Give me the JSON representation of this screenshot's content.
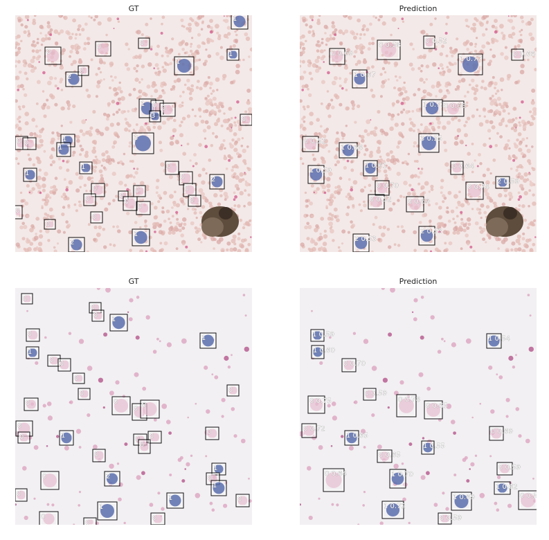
{
  "panels": [
    {
      "title": "GT",
      "variant": "smear",
      "boxes": [
        {
          "b": [
            334,
            20,
            358,
            42
          ],
          "label": "1"
        },
        {
          "b": [
            65,
            68,
            88,
            93
          ],
          "label": "0"
        },
        {
          "b": [
            138,
            60,
            160,
            81
          ],
          "label": "0"
        },
        {
          "b": [
            200,
            55,
            216,
            70
          ],
          "label": "0"
        },
        {
          "b": [
            252,
            82,
            280,
            108
          ],
          "label": "1"
        },
        {
          "b": [
            328,
            71,
            345,
            87
          ],
          "label": "1"
        },
        {
          "b": [
            95,
            104,
            118,
            125
          ],
          "label": "2"
        },
        {
          "b": [
            113,
            95,
            128,
            109
          ],
          "label": "0"
        },
        {
          "b": [
            201,
            143,
            225,
            170
          ],
          "label": "1"
        },
        {
          "b": [
            218,
            145,
            236,
            166
          ],
          "label": "0"
        },
        {
          "b": [
            231,
            149,
            253,
            168
          ],
          "label": "0"
        },
        {
          "b": [
            216,
            160,
            232,
            176
          ],
          "label": "3"
        },
        {
          "b": [
            347,
            165,
            364,
            181
          ],
          "label": "0"
        },
        {
          "b": [
            191,
            192,
            222,
            222
          ],
          "label": "3"
        },
        {
          "b": [
            22,
            197,
            40,
            216
          ],
          "label": "0"
        },
        {
          "b": [
            33,
            199,
            52,
            216
          ],
          "label": "0"
        },
        {
          "b": [
            88,
            194,
            108,
            212
          ],
          "label": "1"
        },
        {
          "b": [
            82,
            206,
            102,
            226
          ],
          "label": "1"
        },
        {
          "b": [
            115,
            234,
            133,
            251
          ],
          "label": "1"
        },
        {
          "b": [
            34,
            243,
            53,
            262
          ],
          "label": "1"
        },
        {
          "b": [
            239,
            233,
            258,
            252
          ],
          "label": "0"
        },
        {
          "b": [
            259,
            248,
            278,
            267
          ],
          "label": "0"
        },
        {
          "b": [
            303,
            252,
            324,
            273
          ],
          "label": "2"
        },
        {
          "b": [
            265,
            265,
            283,
            284
          ],
          "label": "0"
        },
        {
          "b": [
            272,
            282,
            290,
            298
          ],
          "label": "0"
        },
        {
          "b": [
            132,
            265,
            151,
            284
          ],
          "label": "0"
        },
        {
          "b": [
            121,
            280,
            138,
            297
          ],
          "label": "0"
        },
        {
          "b": [
            171,
            276,
            185,
            290
          ],
          "label": "0"
        },
        {
          "b": [
            193,
            268,
            210,
            284
          ],
          "label": "0"
        },
        {
          "b": [
            178,
            284,
            198,
            304
          ],
          "label": "0"
        },
        {
          "b": [
            197,
            291,
            217,
            310
          ],
          "label": "0"
        },
        {
          "b": [
            20,
            297,
            32,
            316
          ],
          "label": "0"
        },
        {
          "b": [
            64,
            317,
            80,
            331
          ],
          "label": "0"
        },
        {
          "b": [
            131,
            306,
            148,
            322
          ],
          "label": "0"
        },
        {
          "b": [
            191,
            331,
            216,
            355
          ],
          "label": "1"
        },
        {
          "b": [
            99,
            343,
            122,
            364
          ],
          "label": "2"
        }
      ]
    },
    {
      "title": "Prediction",
      "variant": "smear",
      "boxes": [
        {
          "b": [
            545,
            58,
            578,
            86
          ],
          "label": "0 0.58"
        },
        {
          "b": [
            612,
            52,
            628,
            70
          ],
          "label": "0 0.52"
        },
        {
          "b": [
            476,
            70,
            498,
            93
          ],
          "label": "0 0.69"
        },
        {
          "b": [
            739,
            71,
            756,
            87
          ],
          "label": "0 0.66"
        },
        {
          "b": [
            662,
            78,
            697,
            108
          ],
          "label": "1 0.77"
        },
        {
          "b": [
            509,
            101,
            530,
            127
          ],
          "label": "1 0.67"
        },
        {
          "b": [
            609,
            144,
            639,
            168
          ],
          "label": "1 0.73"
        },
        {
          "b": [
            639,
            146,
            670,
            168
          ],
          "label": "0 0.68"
        },
        {
          "b": [
            605,
            193,
            634,
            220
          ],
          "label": "3 0.55"
        },
        {
          "b": [
            437,
            197,
            460,
            219
          ],
          "label": "0 0.52"
        },
        {
          "b": [
            490,
            206,
            516,
            228
          ],
          "label": "1 0.68"
        },
        {
          "b": [
            525,
            232,
            545,
            254
          ],
          "label": "1 0.61"
        },
        {
          "b": [
            651,
            233,
            669,
            252
          ],
          "label": "0 0.64"
        },
        {
          "b": [
            445,
            239,
            468,
            265
          ],
          "label": "1 0.59"
        },
        {
          "b": [
            716,
            255,
            736,
            272
          ],
          "label": "2 0.59"
        },
        {
          "b": [
            673,
            263,
            698,
            288
          ],
          "label": "0 0.74"
        },
        {
          "b": [
            542,
            261,
            562,
            282
          ],
          "label": "0 0.70"
        },
        {
          "b": [
            532,
            281,
            555,
            302
          ],
          "label": "0 0.52"
        },
        {
          "b": [
            587,
            284,
            612,
            306
          ],
          "label": "0 0.69"
        },
        {
          "b": [
            605,
            327,
            628,
            354
          ],
          "label": "2 0.53"
        },
        {
          "b": [
            510,
            338,
            533,
            364
          ],
          "label": "2 0.53"
        }
      ]
    },
    {
      "title": "GT",
      "variant": "clear",
      "boxes": [
        {
          "b": [
            31,
            424,
            47,
            439
          ],
          "label": "0"
        },
        {
          "b": [
            129,
            437,
            146,
            452
          ],
          "label": "0"
        },
        {
          "b": [
            133,
            448,
            150,
            464
          ],
          "label": "0"
        },
        {
          "b": [
            159,
            454,
            184,
            478
          ],
          "label": "1"
        },
        {
          "b": [
            289,
            481,
            312,
            503
          ],
          "label": "1"
        },
        {
          "b": [
            38,
            475,
            57,
            493
          ],
          "label": "0"
        },
        {
          "b": [
            38,
            501,
            56,
            518
          ],
          "label": "1"
        },
        {
          "b": [
            69,
            513,
            87,
            529
          ],
          "label": "0"
        },
        {
          "b": [
            84,
            518,
            102,
            536
          ],
          "label": "0"
        },
        {
          "b": [
            105,
            539,
            122,
            554
          ],
          "label": "0"
        },
        {
          "b": [
            113,
            561,
            130,
            577
          ],
          "label": "0"
        },
        {
          "b": [
            328,
            556,
            345,
            572
          ],
          "label": "0"
        },
        {
          "b": [
            35,
            575,
            55,
            593
          ],
          "label": "0"
        },
        {
          "b": [
            162,
            573,
            188,
            599
          ],
          "label": "0"
        },
        {
          "b": [
            191,
            583,
            212,
            607
          ],
          "label": "0"
        },
        {
          "b": [
            203,
            578,
            230,
            604
          ],
          "label": "0"
        },
        {
          "b": [
            23,
            608,
            47,
            630
          ],
          "label": "0"
        },
        {
          "b": [
            26,
            624,
            43,
            640
          ],
          "label": "0"
        },
        {
          "b": [
            86,
            622,
            106,
            643
          ],
          "label": "1"
        },
        {
          "b": [
            214,
            623,
            233,
            640
          ],
          "label": "0"
        },
        {
          "b": [
            193,
            627,
            212,
            643
          ],
          "label": "0"
        },
        {
          "b": [
            200,
            635,
            217,
            655
          ],
          "label": "0"
        },
        {
          "b": [
            297,
            617,
            316,
            635
          ],
          "label": "0"
        },
        {
          "b": [
            134,
            649,
            152,
            667
          ],
          "label": "0"
        },
        {
          "b": [
            59,
            681,
            85,
            707
          ],
          "label": "0"
        },
        {
          "b": [
            151,
            681,
            173,
            702
          ],
          "label": "2"
        },
        {
          "b": [
            306,
            669,
            326,
            686
          ],
          "label": "1"
        },
        {
          "b": [
            298,
            683,
            317,
            700
          ],
          "label": "0"
        },
        {
          "b": [
            305,
            694,
            327,
            716
          ],
          "label": "1"
        },
        {
          "b": [
            22,
            706,
            39,
            724
          ],
          "label": "0"
        },
        {
          "b": [
            241,
            712,
            265,
            734
          ],
          "label": "1"
        },
        {
          "b": [
            341,
            714,
            360,
            732
          ],
          "label": "0"
        },
        {
          "b": [
            141,
            725,
            169,
            751
          ],
          "label": "1"
        },
        {
          "b": [
            57,
            739,
            84,
            760
          ],
          "label": "0"
        },
        {
          "b": [
            121,
            748,
            139,
            760
          ],
          "label": "0"
        },
        {
          "b": [
            218,
            741,
            238,
            758
          ],
          "label": "0"
        }
      ]
    },
    {
      "title": "Prediction",
      "variant": "clear",
      "boxes": [
        {
          "b": [
            449,
            476,
            468,
            493
          ],
          "label": "1 0.59"
        },
        {
          "b": [
            703,
            482,
            724,
            503
          ],
          "label": "1 0.54"
        },
        {
          "b": [
            450,
            499,
            468,
            518
          ],
          "label": "1 0.60"
        },
        {
          "b": [
            494,
            518,
            514,
            537
          ],
          "label": "0 0.70"
        },
        {
          "b": [
            525,
            561,
            543,
            578
          ],
          "label": "0 0.59"
        },
        {
          "b": [
            573,
            570,
            601,
            602
          ],
          "label": "0 0.78"
        },
        {
          "b": [
            613,
            579,
            639,
            605
          ],
          "label": "0 0.65"
        },
        {
          "b": [
            445,
            572,
            469,
            597
          ],
          "label": "0 0.75"
        },
        {
          "b": [
            436,
            612,
            457,
            632
          ],
          "label": "0 0.72"
        },
        {
          "b": [
            498,
            622,
            518,
            643
          ],
          "label": "1 0.65"
        },
        {
          "b": [
            707,
            616,
            727,
            636
          ],
          "label": "0 0.69"
        },
        {
          "b": [
            609,
            637,
            627,
            656
          ],
          "label": "1 0.55"
        },
        {
          "b": [
            545,
            650,
            566,
            668
          ],
          "label": "0 0.65"
        },
        {
          "b": [
            563,
            678,
            586,
            705
          ],
          "label": "1 0.70"
        },
        {
          "b": [
            467,
            677,
            497,
            710
          ],
          "label": "0 0.64"
        },
        {
          "b": [
            718,
            668,
            740,
            686
          ],
          "label": "0 0.59"
        },
        {
          "b": [
            714,
            696,
            737,
            714
          ],
          "label": "1 0.62"
        },
        {
          "b": [
            749,
            709,
            776,
            736
          ],
          "label": "0 0.50"
        },
        {
          "b": [
            652,
            711,
            681,
            737
          ],
          "label": "1 0.69"
        },
        {
          "b": [
            552,
            724,
            583,
            749
          ],
          "label": "1 0.72"
        },
        {
          "b": [
            633,
            741,
            652,
            757
          ],
          "label": "0 0.59"
        }
      ]
    }
  ]
}
